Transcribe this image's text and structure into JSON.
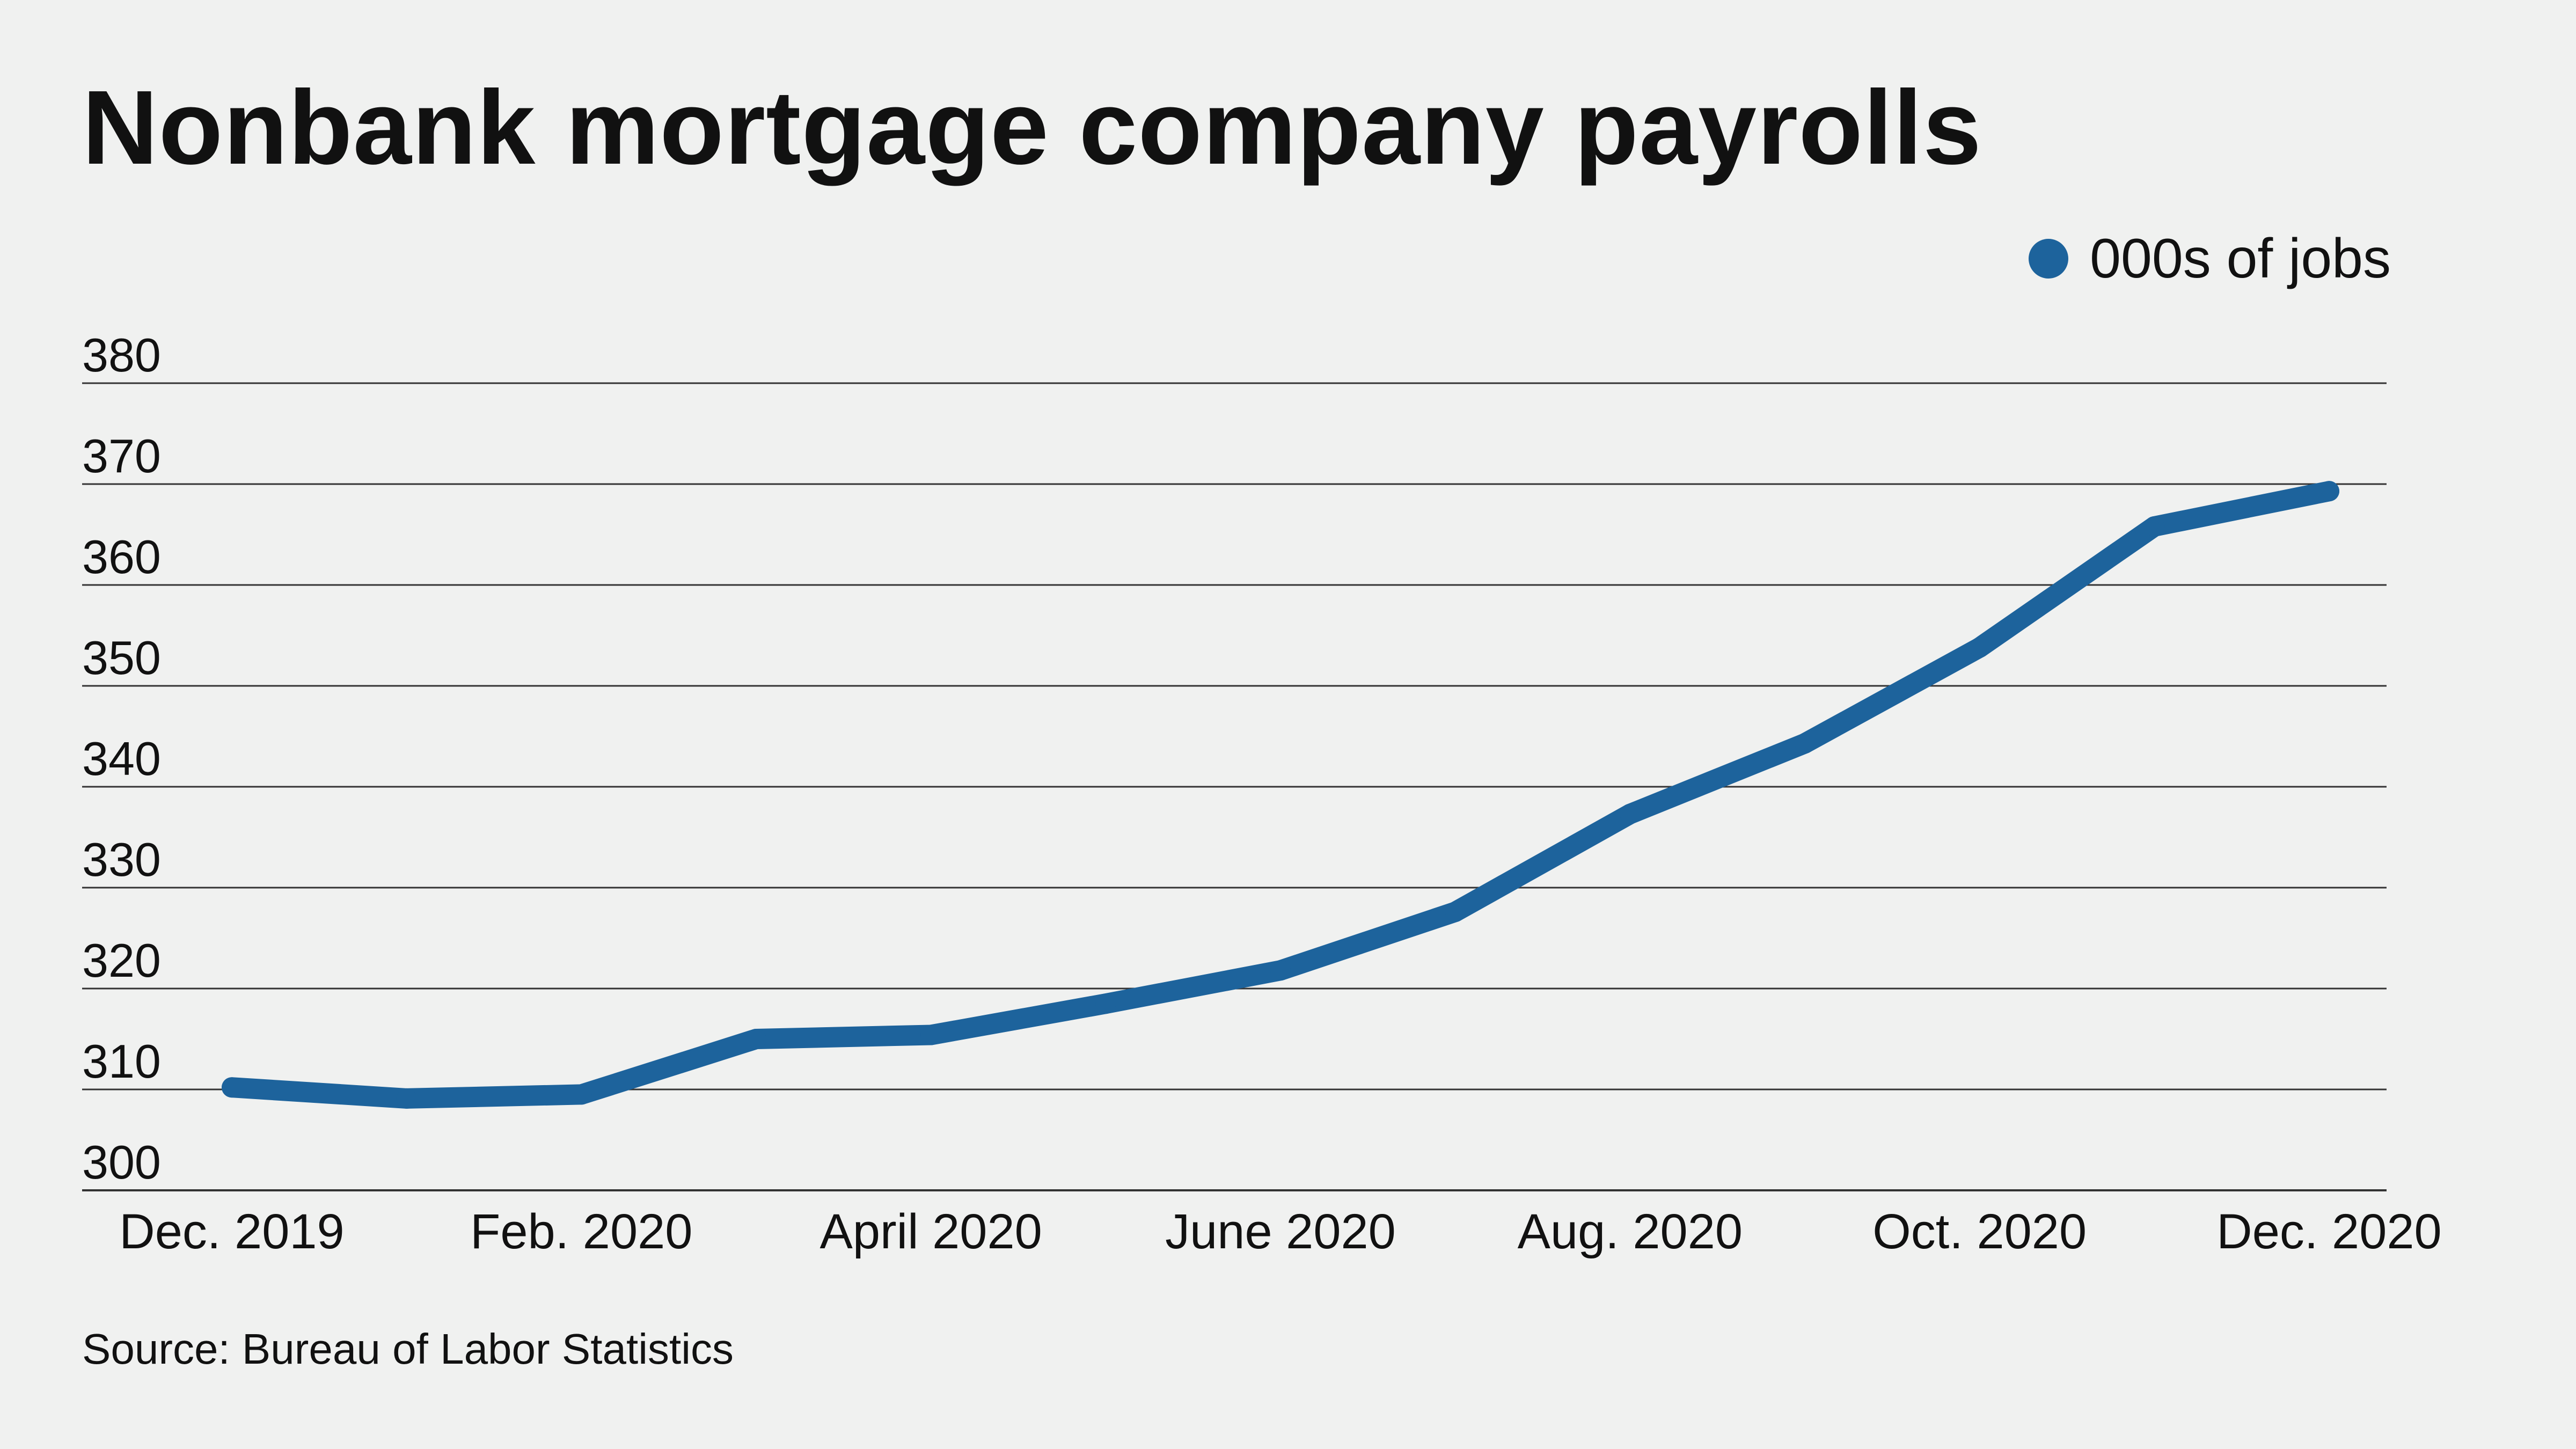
{
  "header": {
    "title": "Nonbank mortgage company payrolls"
  },
  "legend": {
    "label": "000s of jobs"
  },
  "source": "Source: Bureau of Labor Statistics",
  "colors": {
    "series": "#1d639c",
    "grid": "#333333",
    "background": "#f0f1f0"
  },
  "chart_data": {
    "type": "line",
    "x": [
      "Dec. 2019",
      "Jan. 2020",
      "Feb. 2020",
      "March 2020",
      "April 2020",
      "May 2020",
      "June 2020",
      "July 2020",
      "Aug. 2020",
      "Sept. 2020",
      "Oct. 2020",
      "Nov. 2020",
      "Dec. 2020"
    ],
    "x_tick_labels": [
      "Dec. 2019",
      "",
      "Feb. 2020",
      "",
      "April 2020",
      "",
      "June 2020",
      "",
      "Aug. 2020",
      "",
      "Oct. 2020",
      "",
      "Dec. 2020"
    ],
    "series": [
      {
        "name": "000s of jobs",
        "values": [
          310.2,
          309.1,
          309.5,
          315.0,
          315.4,
          318.5,
          321.8,
          327.6,
          337.3,
          344.3,
          353.8,
          365.8,
          369.3
        ]
      }
    ],
    "y_ticks": [
      300,
      310,
      320,
      330,
      340,
      350,
      360,
      370,
      380
    ],
    "ylim": [
      300,
      380
    ],
    "grid": true,
    "legend_position": "top-right"
  }
}
